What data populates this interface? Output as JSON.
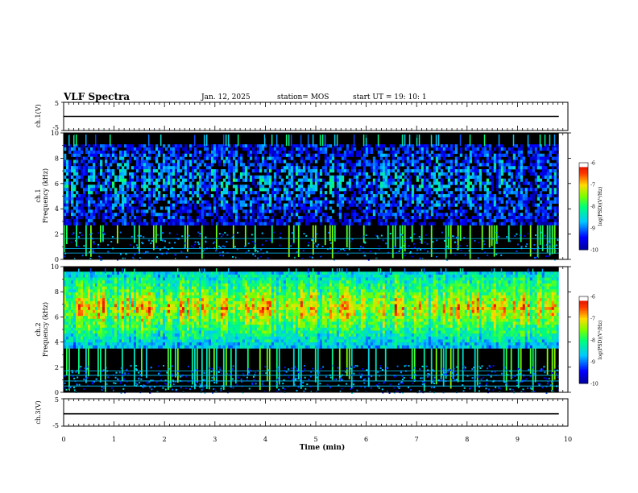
{
  "header": {
    "title": "VLF Spectra",
    "date": "Jan. 12, 2025",
    "station": "station= MOS",
    "start": "start  UT  =    19: 10: 1"
  },
  "colors": {
    "background": "#000000",
    "trace": "#000000",
    "hline": "#00c8ff"
  },
  "chart_data": [
    {
      "type": "line",
      "ylabel": "ch.1(V)",
      "yticks": [
        "5",
        "-5"
      ],
      "ylim": [
        -5,
        5
      ],
      "series": [
        {
          "x": [
            0,
            9.82
          ],
          "values": [
            0,
            0
          ]
        }
      ]
    },
    {
      "type": "heatmap",
      "ylabel": "ch.1\nFrequency (kHz)",
      "ylim": [
        0,
        10
      ],
      "yticks": [
        "0",
        "2",
        "4",
        "6",
        "8",
        "10"
      ],
      "colorbar": {
        "label": "log(PSD)(V²/Hz)",
        "ticks": [
          "-6",
          "-7",
          "-8",
          "-9",
          "-10"
        ],
        "range": [
          -10,
          -6
        ]
      },
      "band_khz": [
        2.7,
        9.1
      ],
      "hlines_khz": [
        0.5,
        0.85,
        1.65
      ],
      "intensity": "weak"
    },
    {
      "type": "heatmap",
      "ylabel": "ch.2\nFrequency (kHz)",
      "ylim": [
        0,
        10
      ],
      "yticks": [
        "0",
        "2",
        "4",
        "6",
        "8",
        "10"
      ],
      "colorbar": {
        "label": "log(PSD)(V²/Hz)",
        "ticks": [
          "-6",
          "-7",
          "-8",
          "-9",
          "-10"
        ],
        "range": [
          -10,
          -6
        ]
      },
      "band_khz": [
        3.5,
        9.6
      ],
      "hlines_khz": [
        0.5,
        0.9,
        1.35,
        1.7
      ],
      "intensity": "strong"
    },
    {
      "type": "line",
      "ylabel": "ch.3(V)",
      "yticks": [
        "5",
        "-5"
      ],
      "ylim": [
        -5,
        5
      ],
      "series": [
        {
          "x": [
            0,
            9.82
          ],
          "values": [
            -0.5,
            -0.5
          ]
        }
      ]
    }
  ],
  "xaxis": {
    "label": "Time  (min)",
    "ticks": [
      "0",
      "1",
      "2",
      "3",
      "4",
      "5",
      "6",
      "7",
      "8",
      "9",
      "10"
    ],
    "range": [
      0,
      10
    ],
    "data_end": 9.82
  }
}
